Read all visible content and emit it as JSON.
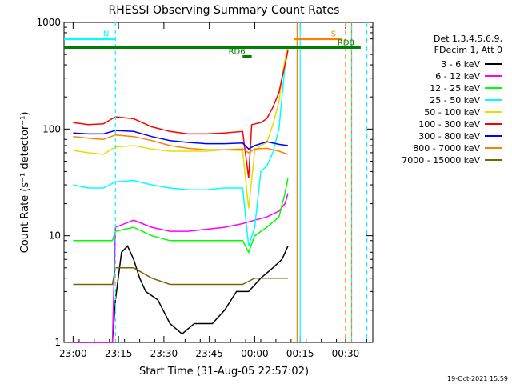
{
  "chart_data": {
    "type": "line",
    "title": "RHESSI Observing Summary Count Rates",
    "xlabel": "Start Time (31-Aug-05 22:57:02)",
    "ylabel": "Count Rate (s⁻¹ detector⁻¹)",
    "yscale": "log",
    "ylim": [
      1,
      1000
    ],
    "y_ticks": [
      {
        "value": 1,
        "label": "1"
      },
      {
        "value": 10,
        "label": "10"
      },
      {
        "value": 100,
        "label": "100"
      },
      {
        "value": 1000,
        "label": "1000"
      }
    ],
    "x_range_minutes": [
      -3,
      38
    ],
    "x_ticks": [
      {
        "minutes": 0,
        "label": "23:00"
      },
      {
        "minutes": 15,
        "label": "23:15"
      },
      {
        "minutes": 30,
        "label": "23:30"
      },
      {
        "minutes": 45,
        "label": "23:45"
      },
      {
        "minutes": 60,
        "label": "00:00"
      },
      {
        "minutes": 75,
        "label": "00:15"
      },
      {
        "minutes": 90,
        "label": "00:30"
      }
    ],
    "x_ticks_note": "tick minutes are minutes after 23:00",
    "legend_header": [
      "Det 1,3,4,5,6,9,",
      "FDecim 1, Att 0"
    ],
    "legend_position": "right",
    "series": [
      {
        "name": "3 - 6 keV",
        "color": "#000000",
        "points": [
          [
            0,
            1
          ],
          [
            13,
            1
          ],
          [
            14,
            2.5
          ],
          [
            16,
            7
          ],
          [
            18,
            8
          ],
          [
            20,
            6
          ],
          [
            22,
            4
          ],
          [
            24,
            3
          ],
          [
            28,
            2.5
          ],
          [
            32,
            1.5
          ],
          [
            36,
            1.2
          ],
          [
            40,
            1.5
          ],
          [
            46,
            1.5
          ],
          [
            50,
            2
          ],
          [
            54,
            3
          ],
          [
            58,
            3
          ],
          [
            62,
            4
          ],
          [
            66,
            5
          ],
          [
            69,
            6
          ],
          [
            71,
            8
          ]
        ]
      },
      {
        "name": "6 - 12 keV",
        "color": "#ff00ff",
        "points": [
          [
            0,
            1
          ],
          [
            13,
            1
          ],
          [
            14,
            12
          ],
          [
            20,
            14
          ],
          [
            26,
            12
          ],
          [
            32,
            11
          ],
          [
            38,
            11
          ],
          [
            44,
            11.5
          ],
          [
            50,
            12
          ],
          [
            56,
            13
          ],
          [
            60,
            14
          ],
          [
            64,
            15
          ],
          [
            68,
            17
          ],
          [
            70,
            20
          ],
          [
            71,
            25
          ]
        ]
      },
      {
        "name": "12 - 25 keV",
        "color": "#00ff00",
        "points": [
          [
            0,
            9
          ],
          [
            5,
            9
          ],
          [
            10,
            9
          ],
          [
            13,
            9
          ],
          [
            14,
            11
          ],
          [
            20,
            12
          ],
          [
            26,
            10
          ],
          [
            32,
            9
          ],
          [
            38,
            9
          ],
          [
            44,
            9
          ],
          [
            50,
            9
          ],
          [
            56,
            9
          ],
          [
            58,
            7
          ],
          [
            60,
            10
          ],
          [
            64,
            12
          ],
          [
            68,
            15
          ],
          [
            70,
            25
          ],
          [
            71,
            35
          ]
        ]
      },
      {
        "name": "25 - 50 keV",
        "color": "#00ffff",
        "points": [
          [
            0,
            30
          ],
          [
            5,
            28
          ],
          [
            10,
            28
          ],
          [
            14,
            32
          ],
          [
            20,
            33
          ],
          [
            26,
            30
          ],
          [
            32,
            28
          ],
          [
            38,
            27
          ],
          [
            44,
            27
          ],
          [
            50,
            28
          ],
          [
            56,
            28
          ],
          [
            58,
            8
          ],
          [
            60,
            12
          ],
          [
            62,
            40
          ],
          [
            64,
            45
          ],
          [
            66,
            60
          ],
          [
            68,
            100
          ],
          [
            69,
            200
          ],
          [
            70,
            400
          ],
          [
            71,
            600
          ]
        ]
      },
      {
        "name": "50 - 100 keV",
        "color": "#e0e000",
        "points": [
          [
            0,
            63
          ],
          [
            5,
            60
          ],
          [
            10,
            58
          ],
          [
            14,
            68
          ],
          [
            20,
            70
          ],
          [
            26,
            65
          ],
          [
            32,
            62
          ],
          [
            38,
            62
          ],
          [
            44,
            62
          ],
          [
            50,
            64
          ],
          [
            56,
            63
          ],
          [
            58,
            18
          ],
          [
            60,
            62
          ],
          [
            62,
            70
          ],
          [
            64,
            75
          ],
          [
            66,
            110
          ],
          [
            68,
            180
          ],
          [
            69,
            300
          ],
          [
            70,
            450
          ],
          [
            71,
            600
          ]
        ]
      },
      {
        "name": "100 - 300 keV",
        "color": "#ff0000",
        "points": [
          [
            0,
            115
          ],
          [
            5,
            110
          ],
          [
            10,
            112
          ],
          [
            14,
            130
          ],
          [
            20,
            125
          ],
          [
            26,
            105
          ],
          [
            32,
            95
          ],
          [
            38,
            90
          ],
          [
            44,
            90
          ],
          [
            50,
            92
          ],
          [
            56,
            95
          ],
          [
            58,
            35
          ],
          [
            59,
            110
          ],
          [
            62,
            115
          ],
          [
            64,
            125
          ],
          [
            66,
            160
          ],
          [
            68,
            220
          ],
          [
            69,
            300
          ],
          [
            70,
            400
          ],
          [
            71,
            550
          ]
        ]
      },
      {
        "name": "300 - 800 keV",
        "color": "#0000ff",
        "points": [
          [
            0,
            92
          ],
          [
            5,
            90
          ],
          [
            10,
            90
          ],
          [
            14,
            97
          ],
          [
            20,
            95
          ],
          [
            26,
            85
          ],
          [
            32,
            78
          ],
          [
            38,
            75
          ],
          [
            44,
            73
          ],
          [
            50,
            73
          ],
          [
            56,
            74
          ],
          [
            58,
            65
          ],
          [
            60,
            70
          ],
          [
            64,
            76
          ],
          [
            68,
            72
          ],
          [
            71,
            70
          ]
        ]
      },
      {
        "name": "800 - 7000 keV",
        "color": "#ff8000",
        "points": [
          [
            0,
            85
          ],
          [
            5,
            82
          ],
          [
            10,
            80
          ],
          [
            14,
            88
          ],
          [
            20,
            85
          ],
          [
            26,
            78
          ],
          [
            32,
            70
          ],
          [
            38,
            66
          ],
          [
            44,
            64
          ],
          [
            50,
            64
          ],
          [
            56,
            65
          ],
          [
            58,
            60
          ],
          [
            60,
            65
          ],
          [
            64,
            66
          ],
          [
            68,
            62
          ],
          [
            71,
            58
          ]
        ]
      },
      {
        "name": "7000 - 15000 keV",
        "color": "#806000",
        "points": [
          [
            0,
            3.5
          ],
          [
            5,
            3.5
          ],
          [
            10,
            3.5
          ],
          [
            13,
            3.5
          ],
          [
            14,
            5
          ],
          [
            20,
            5
          ],
          [
            26,
            4
          ],
          [
            32,
            3.5
          ],
          [
            38,
            3.5
          ],
          [
            44,
            3.5
          ],
          [
            50,
            3.5
          ],
          [
            56,
            3.5
          ],
          [
            60,
            4
          ],
          [
            64,
            4
          ],
          [
            68,
            4
          ],
          [
            71,
            4
          ]
        ]
      }
    ],
    "markers": [
      {
        "label": "N",
        "color": "#00ffff",
        "y": 700,
        "x_start": -3,
        "x_end": 14,
        "vline": 14
      },
      {
        "label": "S",
        "color": "#ff8000",
        "y": 700,
        "x_start": 73,
        "x_end": 89,
        "vline": 92
      },
      {
        "label": "RD6",
        "color": "#008000",
        "y": 480,
        "x_start": 56,
        "x_end": 59
      },
      {
        "label": "RD8",
        "color": "#008000",
        "y": 580,
        "x_start": -3,
        "x_end": 95
      }
    ],
    "vertical_lines": [
      {
        "minutes": 74,
        "color": "#ff8000",
        "style": "solid"
      },
      {
        "minutes": 75,
        "color": "#00ffff",
        "style": "solid"
      },
      {
        "minutes": 92,
        "color": "#00ffff",
        "style": "solid"
      },
      {
        "minutes": 90,
        "color": "#ff8000",
        "style": "dashed"
      },
      {
        "minutes": 97,
        "color": "#00ffff",
        "style": "dashed"
      }
    ],
    "timestamp": "19-Oct-2021 15:59"
  }
}
